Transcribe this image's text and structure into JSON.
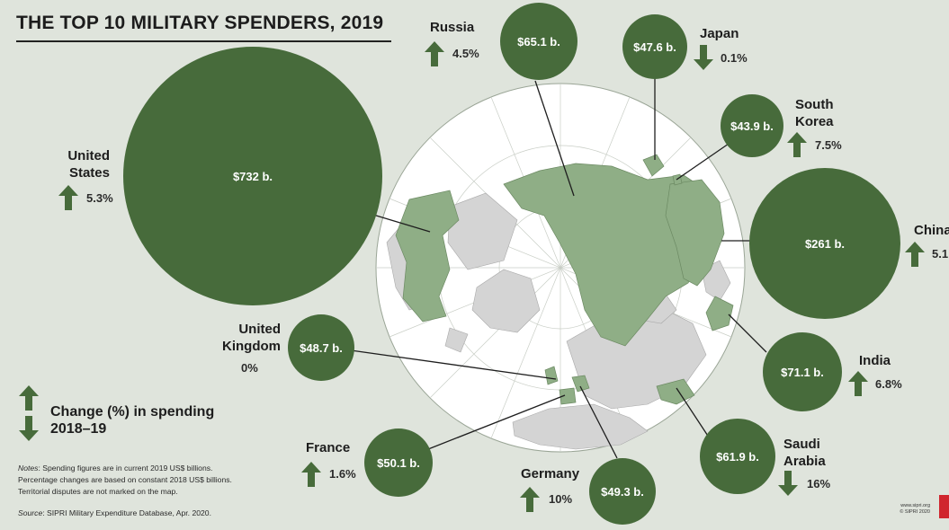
{
  "title": "THE TOP 10 MILITARY SPENDERS, 2019",
  "legend": {
    "line1": "Change (%) in spending",
    "line2": "2018–19"
  },
  "notes": {
    "label": "Notes",
    "line1": ": Spending figures are in current 2019 US$ billions.",
    "line2": "Percentage changes are based on constant 2018 US$ billions.",
    "line3": "Territorial disputes are not marked on the map."
  },
  "source": {
    "label": "Source",
    "text": ": SIPRI Military Expenditure Database, Apr. 2020."
  },
  "credit": {
    "line1": "www.sipri.org",
    "line2": "© SIPRI 2020"
  },
  "colors": {
    "bubble": "#476b3b",
    "land_highlight": "#8fae86",
    "land_other": "#d4d4d4",
    "ocean": "#ffffff",
    "background": "#dfe4dc"
  },
  "spenders": [
    {
      "country_line1": "United",
      "country_line2": "States",
      "spending": "$732 b.",
      "change": "5.3%",
      "direction": "up"
    },
    {
      "country_line1": "China",
      "country_line2": "",
      "spending": "$261 b.",
      "change": "5.1",
      "direction": "up"
    },
    {
      "country_line1": "India",
      "country_line2": "",
      "spending": "$71.1 b.",
      "change": "6.8%",
      "direction": "up"
    },
    {
      "country_line1": "Russia",
      "country_line2": "",
      "spending": "$65.1 b.",
      "change": "4.5%",
      "direction": "up"
    },
    {
      "country_line1": "Saudi",
      "country_line2": "Arabia",
      "spending": "$61.9 b.",
      "change": "16%",
      "direction": "down"
    },
    {
      "country_line1": "France",
      "country_line2": "",
      "spending": "$50.1 b.",
      "change": "1.6%",
      "direction": "up"
    },
    {
      "country_line1": "Germany",
      "country_line2": "",
      "spending": "$49.3 b.",
      "change": "10%",
      "direction": "up"
    },
    {
      "country_line1": "United",
      "country_line2": "Kingdom",
      "spending": "$48.7 b.",
      "change": "0%",
      "direction": "none"
    },
    {
      "country_line1": "Japan",
      "country_line2": "",
      "spending": "$47.6 b.",
      "change": "0.1%",
      "direction": "down"
    },
    {
      "country_line1": "South",
      "country_line2": "Korea",
      "spending": "$43.9 b.",
      "change": "7.5%",
      "direction": "up"
    }
  ]
}
